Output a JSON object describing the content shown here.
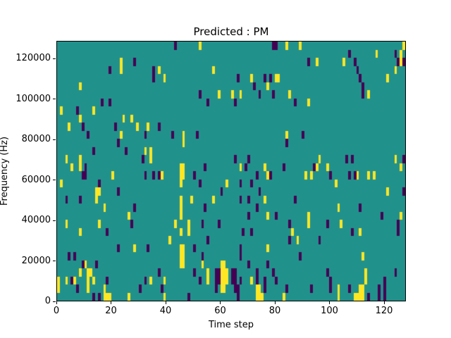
{
  "figure": {
    "title": "Predicted : PM",
    "xlabel": "Time step",
    "ylabel": "Frequency (Hz)"
  },
  "chart_data": {
    "type": "heatmap",
    "title": "Predicted : PM",
    "xlabel": "Time step",
    "ylabel": "Frequency (Hz)",
    "xlim": [
      0,
      128
    ],
    "ylim": [
      0,
      128700
    ],
    "x_ticks": [
      0,
      20,
      40,
      60,
      80,
      100,
      120
    ],
    "y_ticks": [
      0,
      20000,
      40000,
      60000,
      80000,
      100000,
      120000
    ],
    "grid": false,
    "legend": "none",
    "n_cols": 128,
    "n_rows": 32,
    "colormap": "viridis-3-level",
    "value_colors": {
      "0": "#440154",
      "1": "#21918c",
      "2": "#fde725"
    },
    "background_value": 1,
    "cells_yellow": [
      [
        52,
        31
      ],
      [
        84,
        31
      ],
      [
        89,
        31
      ],
      [
        127,
        31
      ],
      [
        117,
        30
      ],
      [
        126,
        30
      ],
      [
        126,
        29
      ],
      [
        23,
        29
      ],
      [
        95,
        29
      ],
      [
        105,
        29
      ],
      [
        23,
        28
      ],
      [
        37,
        28
      ],
      [
        57,
        28
      ],
      [
        124,
        28
      ],
      [
        39,
        27
      ],
      [
        71,
        27
      ],
      [
        80,
        27
      ],
      [
        81,
        27
      ],
      [
        121,
        27
      ],
      [
        8,
        26
      ],
      [
        77,
        26
      ],
      [
        59,
        25
      ],
      [
        64,
        25
      ],
      [
        67,
        25
      ],
      [
        85,
        25
      ],
      [
        114,
        25
      ],
      [
        92,
        24
      ],
      [
        1,
        23
      ],
      [
        13,
        23
      ],
      [
        8,
        22
      ],
      [
        24,
        22
      ],
      [
        27,
        22
      ],
      [
        4,
        21
      ],
      [
        29,
        21
      ],
      [
        33,
        21
      ],
      [
        23,
        20
      ],
      [
        46,
        20
      ],
      [
        84,
        20
      ],
      [
        46,
        19
      ],
      [
        32,
        18
      ],
      [
        34,
        18
      ],
      [
        3,
        17
      ],
      [
        8,
        17
      ],
      [
        34,
        17
      ],
      [
        96,
        17
      ],
      [
        124,
        17
      ],
      [
        5,
        16
      ],
      [
        8,
        16
      ],
      [
        45,
        16
      ],
      [
        46,
        16
      ],
      [
        67,
        16
      ],
      [
        76,
        16
      ],
      [
        95,
        16
      ],
      [
        99,
        16
      ],
      [
        126,
        16
      ],
      [
        20,
        15
      ],
      [
        38,
        15
      ],
      [
        45,
        15
      ],
      [
        46,
        15
      ],
      [
        77,
        15
      ],
      [
        91,
        15
      ],
      [
        93,
        15
      ],
      [
        110,
        15
      ],
      [
        114,
        15
      ],
      [
        116,
        15
      ],
      [
        1,
        14
      ],
      [
        45,
        14
      ],
      [
        62,
        14
      ],
      [
        102,
        14
      ],
      [
        14,
        13
      ],
      [
        15,
        13
      ],
      [
        121,
        13
      ],
      [
        14,
        12
      ],
      [
        45,
        12
      ],
      [
        49,
        12
      ],
      [
        57,
        12
      ],
      [
        76,
        12
      ],
      [
        17,
        11
      ],
      [
        45,
        11
      ],
      [
        103,
        11
      ],
      [
        26,
        10
      ],
      [
        45,
        10
      ],
      [
        77,
        10
      ],
      [
        92,
        10
      ],
      [
        126,
        10
      ],
      [
        3,
        9
      ],
      [
        15,
        9
      ],
      [
        43,
        9
      ],
      [
        48,
        9
      ],
      [
        92,
        9
      ],
      [
        104,
        9
      ],
      [
        8,
        8
      ],
      [
        45,
        8
      ],
      [
        48,
        8
      ],
      [
        86,
        8
      ],
      [
        111,
        8
      ],
      [
        41,
        7
      ],
      [
        88,
        7
      ],
      [
        28,
        6
      ],
      [
        45,
        6
      ],
      [
        46,
        6
      ],
      [
        77,
        6
      ],
      [
        45,
        5
      ],
      [
        46,
        5
      ],
      [
        112,
        5
      ],
      [
        10,
        4
      ],
      [
        45,
        4
      ],
      [
        46,
        4
      ],
      [
        53,
        4
      ],
      [
        60,
        4
      ],
      [
        61,
        4
      ],
      [
        8,
        3
      ],
      [
        11,
        3
      ],
      [
        12,
        3
      ],
      [
        55,
        3
      ],
      [
        60,
        3
      ],
      [
        61,
        3
      ],
      [
        62,
        3
      ],
      [
        113,
        3
      ],
      [
        0,
        2
      ],
      [
        3,
        2
      ],
      [
        6,
        2
      ],
      [
        11,
        2
      ],
      [
        13,
        2
      ],
      [
        34,
        2
      ],
      [
        39,
        2
      ],
      [
        55,
        2
      ],
      [
        60,
        2
      ],
      [
        61,
        2
      ],
      [
        62,
        2
      ],
      [
        71,
        2
      ],
      [
        113,
        2
      ],
      [
        0,
        1
      ],
      [
        11,
        1
      ],
      [
        17,
        1
      ],
      [
        60,
        1
      ],
      [
        61,
        1
      ],
      [
        73,
        1
      ],
      [
        74,
        1
      ],
      [
        103,
        1
      ],
      [
        111,
        1
      ],
      [
        112,
        1
      ],
      [
        17,
        0
      ],
      [
        18,
        0
      ],
      [
        19,
        0
      ],
      [
        26,
        0
      ],
      [
        39,
        0
      ],
      [
        73,
        0
      ],
      [
        74,
        0
      ],
      [
        75,
        0
      ],
      [
        83,
        0
      ],
      [
        103,
        0
      ],
      [
        109,
        0
      ],
      [
        110,
        0
      ],
      [
        111,
        0
      ],
      [
        112,
        0
      ]
    ],
    "cells_purple": [
      [
        43,
        31
      ],
      [
        79,
        31
      ],
      [
        80,
        31
      ],
      [
        107,
        30
      ],
      [
        124,
        30
      ],
      [
        28,
        29
      ],
      [
        92,
        29
      ],
      [
        109,
        29
      ],
      [
        125,
        29
      ],
      [
        127,
        29
      ],
      [
        19,
        28
      ],
      [
        35,
        28
      ],
      [
        110,
        28
      ],
      [
        35,
        27
      ],
      [
        66,
        27
      ],
      [
        76,
        27
      ],
      [
        78,
        27
      ],
      [
        111,
        27
      ],
      [
        72,
        26
      ],
      [
        112,
        26
      ],
      [
        52,
        25
      ],
      [
        74,
        25
      ],
      [
        79,
        25
      ],
      [
        112,
        25
      ],
      [
        16,
        24
      ],
      [
        19,
        24
      ],
      [
        55,
        24
      ],
      [
        65,
        24
      ],
      [
        87,
        24
      ],
      [
        7,
        23
      ],
      [
        9,
        21
      ],
      [
        21,
        21
      ],
      [
        37,
        21
      ],
      [
        11,
        20
      ],
      [
        32,
        20
      ],
      [
        42,
        20
      ],
      [
        51,
        20
      ],
      [
        90,
        20
      ],
      [
        22,
        19
      ],
      [
        84,
        19
      ],
      [
        13,
        18
      ],
      [
        25,
        18
      ],
      [
        31,
        17
      ],
      [
        65,
        17
      ],
      [
        70,
        17
      ],
      [
        106,
        17
      ],
      [
        108,
        17
      ],
      [
        127,
        17
      ],
      [
        10,
        16
      ],
      [
        54,
        16
      ],
      [
        69,
        16
      ],
      [
        83,
        16
      ],
      [
        94,
        16
      ],
      [
        9,
        15
      ],
      [
        10,
        15
      ],
      [
        32,
        15
      ],
      [
        35,
        15
      ],
      [
        37,
        15
      ],
      [
        50,
        15
      ],
      [
        73,
        15
      ],
      [
        78,
        15
      ],
      [
        100,
        15
      ],
      [
        107,
        15
      ],
      [
        109,
        15
      ],
      [
        15,
        14
      ],
      [
        52,
        14
      ],
      [
        67,
        14
      ],
      [
        71,
        14
      ],
      [
        22,
        13
      ],
      [
        60,
        13
      ],
      [
        74,
        13
      ],
      [
        127,
        13
      ],
      [
        3,
        12
      ],
      [
        8,
        12
      ],
      [
        67,
        12
      ],
      [
        70,
        12
      ],
      [
        87,
        12
      ],
      [
        28,
        11
      ],
      [
        54,
        11
      ],
      [
        73,
        11
      ],
      [
        111,
        11
      ],
      [
        70,
        10
      ],
      [
        80,
        10
      ],
      [
        119,
        10
      ],
      [
        27,
        9
      ],
      [
        53,
        9
      ],
      [
        59,
        9
      ],
      [
        85,
        9
      ],
      [
        99,
        9
      ],
      [
        125,
        9
      ],
      [
        18,
        8
      ],
      [
        68,
        8
      ],
      [
        71,
        8
      ],
      [
        108,
        8
      ],
      [
        125,
        8
      ],
      [
        55,
        7
      ],
      [
        85,
        7
      ],
      [
        96,
        7
      ],
      [
        22,
        6
      ],
      [
        33,
        6
      ],
      [
        50,
        6
      ],
      [
        67,
        6
      ],
      [
        4,
        5
      ],
      [
        6,
        5
      ],
      [
        53,
        5
      ],
      [
        67,
        5
      ],
      [
        89,
        5
      ],
      [
        9,
        4
      ],
      [
        14,
        4
      ],
      [
        70,
        4
      ],
      [
        77,
        4
      ],
      [
        37,
        3
      ],
      [
        50,
        3
      ],
      [
        58,
        3
      ],
      [
        59,
        3
      ],
      [
        64,
        3
      ],
      [
        65,
        3
      ],
      [
        73,
        3
      ],
      [
        79,
        3
      ],
      [
        99,
        3
      ],
      [
        124,
        3
      ],
      [
        5,
        2
      ],
      [
        18,
        2
      ],
      [
        32,
        2
      ],
      [
        52,
        2
      ],
      [
        58,
        2
      ],
      [
        59,
        2
      ],
      [
        64,
        2
      ],
      [
        65,
        2
      ],
      [
        67,
        2
      ],
      [
        73,
        2
      ],
      [
        76,
        2
      ],
      [
        80,
        2
      ],
      [
        100,
        2
      ],
      [
        120,
        2
      ],
      [
        7,
        1
      ],
      [
        30,
        1
      ],
      [
        38,
        1
      ],
      [
        58,
        1
      ],
      [
        65,
        1
      ],
      [
        66,
        1
      ],
      [
        76,
        1
      ],
      [
        84,
        1
      ],
      [
        93,
        1
      ],
      [
        100,
        1
      ],
      [
        107,
        1
      ],
      [
        118,
        1
      ],
      [
        120,
        1
      ],
      [
        13,
        0
      ],
      [
        15,
        0
      ],
      [
        48,
        0
      ],
      [
        66,
        0
      ],
      [
        114,
        0
      ],
      [
        118,
        0
      ],
      [
        120,
        0
      ]
    ]
  }
}
